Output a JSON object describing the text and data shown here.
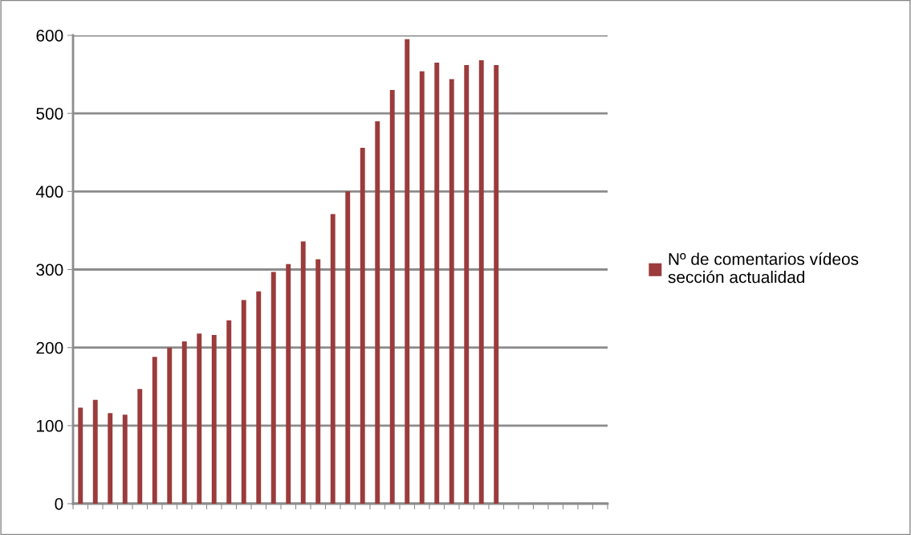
{
  "chart_data": {
    "type": "bar",
    "categories": [
      null,
      null,
      null,
      null,
      null,
      null,
      null,
      null,
      null,
      null,
      null,
      null,
      null,
      null,
      null,
      null,
      null,
      null,
      null,
      null,
      null,
      null,
      null,
      null,
      null,
      null,
      null,
      null,
      null,
      null,
      null,
      null,
      null,
      null,
      null,
      null
    ],
    "series": [
      {
        "name": "Nº de comentarios vídeos sección actualidad",
        "color": "#9b3b3b",
        "values": [
          123,
          133,
          116,
          114,
          147,
          188,
          200,
          208,
          218,
          216,
          235,
          261,
          272,
          297,
          307,
          336,
          313,
          371,
          400,
          456,
          490,
          530,
          595,
          554,
          565,
          544,
          562,
          568,
          562,
          null,
          null,
          null,
          null,
          null,
          null,
          null
        ]
      }
    ],
    "ylim": [
      0,
      600
    ],
    "yticks": [
      0,
      100,
      200,
      300,
      400,
      500,
      600
    ],
    "grid": "y",
    "legend": "right"
  }
}
